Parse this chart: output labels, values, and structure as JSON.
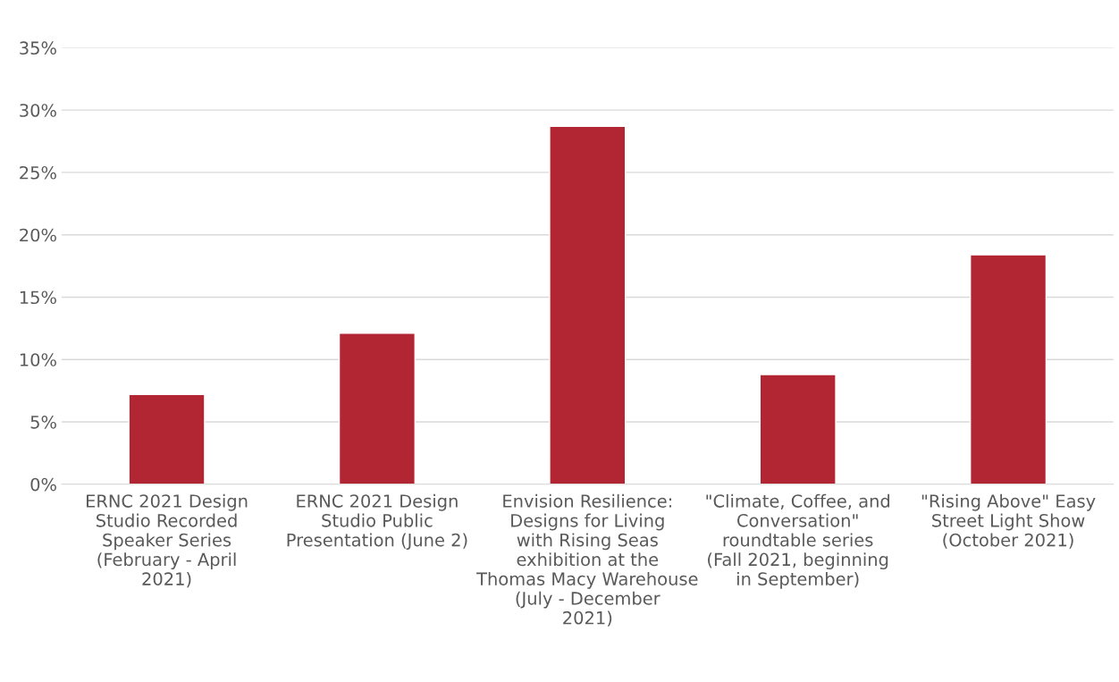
{
  "chart_data": {
    "type": "bar",
    "categories": [
      "ERNC 2021 Design Studio Recorded Speaker Series (February - April 2021)",
      "ERNC 2021 Design Studio Public Presentation (June 2)",
      "Envision Resilience: Designs for Living with Rising Seas exhibition at the Thomas Macy Warehouse (July - December 2021)",
      "\"Climate, Coffee, and Conversation\" roundtable series (Fall 2021, beginning in September)",
      "\"Rising Above\" Easy Street Light Show (October 2021)"
    ],
    "values": [
      7.2,
      12.1,
      28.7,
      8.8,
      18.4
    ],
    "color": "#b22532",
    "ylim": [
      0,
      35
    ],
    "yticks": [
      {
        "value": 0,
        "label": "0%"
      },
      {
        "value": 5,
        "label": "5%"
      },
      {
        "value": 10,
        "label": "10%"
      },
      {
        "value": 15,
        "label": "15%"
      },
      {
        "value": 20,
        "label": "20%"
      },
      {
        "value": 25,
        "label": "25%"
      },
      {
        "value": 30,
        "label": "30%"
      },
      {
        "value": 35,
        "label": "35%"
      }
    ],
    "grid": "y"
  }
}
